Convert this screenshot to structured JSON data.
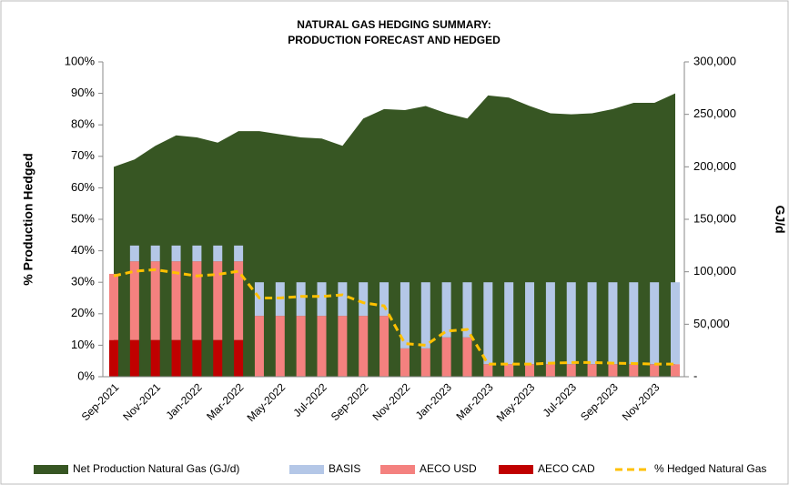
{
  "chart_data": {
    "type": "combo",
    "title": "NATURAL GAS HEDGING SUMMARY:",
    "subtitle": "PRODUCTION FORECAST AND HEDGED",
    "ylabel": "% Production Hedged",
    "y2label": "GJ/d",
    "categories": [
      "Sep-2021",
      null,
      "Nov-2021",
      null,
      "Jan-2022",
      null,
      "Mar-2022",
      null,
      "May-2022",
      null,
      "Jul-2022",
      null,
      "Sep-2022",
      null,
      "Nov-2022",
      null,
      "Jan-2023",
      null,
      "Mar-2023",
      null,
      "May-2023",
      null,
      "Jul-2023",
      null,
      "Sep-2023",
      null,
      "Nov-2023",
      null
    ],
    "ylim": [
      0,
      100
    ],
    "yticks": [
      {
        "value": 0,
        "label": "0%"
      },
      {
        "value": 10,
        "label": "10%"
      },
      {
        "value": 20,
        "label": "20%"
      },
      {
        "value": 30,
        "label": "30%"
      },
      {
        "value": 40,
        "label": "40%"
      },
      {
        "value": 50,
        "label": "50%"
      },
      {
        "value": 60,
        "label": "60%"
      },
      {
        "value": 70,
        "label": "70%"
      },
      {
        "value": 80,
        "label": "80%"
      },
      {
        "value": 90,
        "label": "90%"
      },
      {
        "value": 100,
        "label": "100%"
      }
    ],
    "y2lim": [
      0,
      300000
    ],
    "y2ticks": [
      {
        "value": 0,
        "label": "-"
      },
      {
        "value": 50000,
        "label": "50,000"
      },
      {
        "value": 100000,
        "label": "100,000"
      },
      {
        "value": 150000,
        "label": "150,000"
      },
      {
        "value": 200000,
        "label": "200,000"
      },
      {
        "value": 250000,
        "label": "250,000"
      },
      {
        "value": 300000,
        "label": "300,000"
      }
    ],
    "legend": "bottom",
    "series": [
      {
        "name": "Net Production Natural Gas (GJ/d)",
        "type": "area",
        "axis": "y2",
        "color": "#375623",
        "values": [
          200000,
          207000,
          220000,
          230000,
          228000,
          223000,
          234000,
          234000,
          231000,
          228000,
          227000,
          220000,
          246000,
          255000,
          254000,
          258000,
          251000,
          246000,
          268000,
          266000,
          258000,
          251000,
          250000,
          251000,
          255000,
          261000,
          261000,
          270000
        ]
      },
      {
        "name": "BASIS",
        "type": "bar",
        "axis": "y2",
        "color": "#b4c7e7",
        "values": [
          0,
          15000,
          15000,
          15000,
          15000,
          15000,
          15000,
          32000,
          32000,
          32000,
          32000,
          32000,
          32000,
          32000,
          63000,
          63000,
          52500,
          52500,
          78000,
          78000,
          78000,
          78000,
          78000,
          78000,
          78000,
          78000,
          78000,
          78000
        ]
      },
      {
        "name": "AECO USD",
        "type": "bar",
        "axis": "y2",
        "color": "#f4817f",
        "values": [
          63000,
          75000,
          75000,
          75000,
          75000,
          75000,
          75000,
          58000,
          58000,
          58000,
          58000,
          58000,
          58000,
          58000,
          27000,
          27000,
          37500,
          37500,
          12000,
          12000,
          12000,
          12000,
          12000,
          12000,
          12000,
          12000,
          12000,
          12000
        ]
      },
      {
        "name": "AECO CAD",
        "type": "bar",
        "axis": "y2",
        "color": "#c00000",
        "values": [
          35000,
          35000,
          35000,
          35000,
          35000,
          35000,
          35000,
          0,
          0,
          0,
          0,
          0,
          0,
          0,
          0,
          0,
          0,
          0,
          0,
          0,
          0,
          0,
          0,
          0,
          0,
          0,
          0,
          0
        ]
      },
      {
        "name": "% Hedged Natural Gas",
        "type": "line",
        "axis": "y",
        "color": "#ffc000",
        "values": [
          32,
          33.5,
          34,
          33,
          32,
          32.5,
          33.5,
          25,
          25,
          25.5,
          25.5,
          26,
          23.5,
          22.5,
          10.5,
          10,
          14.5,
          15,
          4,
          4,
          4,
          4.3,
          4.5,
          4.5,
          4.3,
          4.2,
          4,
          4
        ]
      }
    ]
  }
}
